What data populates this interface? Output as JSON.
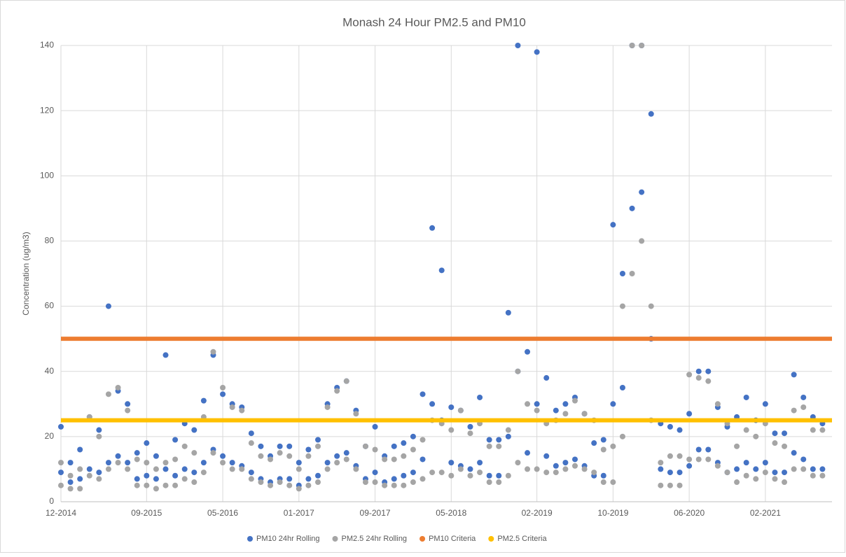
{
  "chart_data": {
    "type": "scatter",
    "title": "Monash 24 Hour PM2.5 and PM10",
    "y_label": "Concentration (ug/m3)",
    "x": [
      "12-2014",
      "01-2015",
      "02-2015",
      "03-2015",
      "04-2015",
      "05-2015",
      "06-2015",
      "07-2015",
      "08-2015",
      "09-2015",
      "10-2015",
      "11-2015",
      "12-2015",
      "01-2016",
      "02-2016",
      "03-2016",
      "04-2016",
      "05-2016",
      "06-2016",
      "07-2016",
      "08-2016",
      "09-2016",
      "10-2016",
      "11-2016",
      "12-2016",
      "01-2017",
      "02-2017",
      "03-2017",
      "04-2017",
      "05-2017",
      "06-2017",
      "07-2017",
      "08-2017",
      "09-2017",
      "10-2017",
      "11-2017",
      "12-2017",
      "01-2018",
      "02-2018",
      "03-2018",
      "04-2018",
      "05-2018",
      "06-2018",
      "07-2018",
      "08-2018",
      "09-2018",
      "10-2018",
      "11-2018",
      "12-2018",
      "01-2019",
      "02-2019",
      "03-2019",
      "04-2019",
      "05-2019",
      "06-2019",
      "07-2019",
      "08-2019",
      "09-2019",
      "10-2019",
      "11-2019",
      "12-2019",
      "01-2020",
      "02-2020",
      "03-2020",
      "04-2020",
      "05-2020",
      "06-2020",
      "07-2020",
      "08-2020",
      "09-2020",
      "10-2020",
      "11-2020",
      "12-2020",
      "01-2021",
      "02-2021",
      "03-2021",
      "04-2021",
      "05-2021",
      "06-2021",
      "07-2021",
      "08-2021"
    ],
    "xlim": [
      "12-2014",
      "09-2021"
    ],
    "xticks": [
      "12-2014",
      "09-2015",
      "05-2016",
      "01-2017",
      "09-2017",
      "05-2018",
      "02-2019",
      "10-2019",
      "06-2020",
      "02-2021"
    ],
    "ylim": [
      0,
      140
    ],
    "yticks": [
      0,
      20,
      40,
      60,
      80,
      100,
      120,
      140
    ],
    "grid": true,
    "series": [
      {
        "name": "PM10 24hr Rolling",
        "color": "#4472c4",
        "values": [
          [
            23,
            9
          ],
          [
            12,
            6
          ],
          [
            16,
            7
          ],
          [
            26,
            10
          ],
          [
            22,
            9
          ],
          [
            60,
            12
          ],
          [
            34,
            14
          ],
          [
            30,
            12
          ],
          [
            15,
            7
          ],
          [
            18,
            8
          ],
          [
            14,
            7
          ],
          [
            45,
            10
          ],
          [
            19,
            8
          ],
          [
            24,
            10
          ],
          [
            22,
            9
          ],
          [
            31,
            12
          ],
          [
            45,
            16
          ],
          [
            33,
            14
          ],
          [
            30,
            12
          ],
          [
            29,
            11
          ],
          [
            21,
            9
          ],
          [
            17,
            7
          ],
          [
            14,
            6
          ],
          [
            17,
            7
          ],
          [
            17,
            7
          ],
          [
            12,
            5
          ],
          [
            16,
            7
          ],
          [
            19,
            8
          ],
          [
            30,
            12
          ],
          [
            35,
            14
          ],
          [
            37,
            15
          ],
          [
            28,
            11
          ],
          [
            17,
            7
          ],
          [
            23,
            9
          ],
          [
            14,
            6
          ],
          [
            17,
            7
          ],
          [
            18,
            8
          ],
          [
            20,
            9
          ],
          [
            33,
            13
          ],
          [
            84,
            30
          ],
          [
            71,
            25
          ],
          [
            29,
            12
          ],
          [
            28,
            11
          ],
          [
            23,
            10
          ],
          [
            32,
            12
          ],
          [
            19,
            8
          ],
          [
            19,
            8
          ],
          [
            58,
            20
          ],
          [
            140,
            40
          ],
          [
            46,
            15
          ],
          [
            138,
            30
          ],
          [
            38,
            14
          ],
          [
            28,
            11
          ],
          [
            30,
            12
          ],
          [
            32,
            13
          ],
          [
            27,
            11
          ],
          [
            18,
            8
          ],
          [
            19,
            8
          ],
          [
            85,
            30
          ],
          [
            70,
            35
          ],
          [
            140,
            90
          ],
          [
            140,
            95
          ],
          [
            119,
            50
          ],
          [
            24,
            10
          ],
          [
            23,
            9
          ],
          [
            22,
            9
          ],
          [
            27,
            11
          ],
          [
            40,
            16
          ],
          [
            40,
            16
          ],
          [
            29,
            12
          ],
          [
            23,
            9
          ],
          [
            26,
            10
          ],
          [
            32,
            12
          ],
          [
            25,
            10
          ],
          [
            30,
            12
          ],
          [
            21,
            9
          ],
          [
            21,
            9
          ],
          [
            39,
            15
          ],
          [
            32,
            13
          ],
          [
            26,
            10
          ],
          [
            24,
            10
          ]
        ]
      },
      {
        "name": "PM2.5 24hr Rolling",
        "color": "#a5a5a5",
        "values": [
          [
            12,
            5
          ],
          [
            8,
            4
          ],
          [
            10,
            4
          ],
          [
            26,
            8
          ],
          [
            20,
            7
          ],
          [
            33,
            10
          ],
          [
            35,
            12
          ],
          [
            28,
            10
          ],
          [
            13,
            5
          ],
          [
            12,
            5
          ],
          [
            10,
            4
          ],
          [
            12,
            5
          ],
          [
            13,
            5
          ],
          [
            17,
            7
          ],
          [
            15,
            6
          ],
          [
            26,
            9
          ],
          [
            46,
            15
          ],
          [
            35,
            12
          ],
          [
            29,
            10
          ],
          [
            28,
            10
          ],
          [
            18,
            7
          ],
          [
            14,
            6
          ],
          [
            13,
            5
          ],
          [
            15,
            6
          ],
          [
            14,
            5
          ],
          [
            10,
            4
          ],
          [
            14,
            5
          ],
          [
            17,
            6
          ],
          [
            29,
            10
          ],
          [
            34,
            12
          ],
          [
            37,
            13
          ],
          [
            27,
            10
          ],
          [
            17,
            6
          ],
          [
            16,
            6
          ],
          [
            13,
            5
          ],
          [
            13,
            5
          ],
          [
            14,
            5
          ],
          [
            16,
            6
          ],
          [
            19,
            7
          ],
          [
            25,
            9
          ],
          [
            24,
            9
          ],
          [
            22,
            8
          ],
          [
            28,
            10
          ],
          [
            21,
            8
          ],
          [
            24,
            9
          ],
          [
            17,
            6
          ],
          [
            17,
            6
          ],
          [
            22,
            8
          ],
          [
            40,
            12
          ],
          [
            30,
            10
          ],
          [
            28,
            10
          ],
          [
            24,
            9
          ],
          [
            25,
            9
          ],
          [
            27,
            10
          ],
          [
            31,
            11
          ],
          [
            27,
            10
          ],
          [
            25,
            9
          ],
          [
            16,
            6
          ],
          [
            17,
            6
          ],
          [
            60,
            20
          ],
          [
            140,
            70
          ],
          [
            140,
            80
          ],
          [
            60,
            25
          ],
          [
            12,
            5
          ],
          [
            14,
            5
          ],
          [
            14,
            5
          ],
          [
            39,
            13
          ],
          [
            38,
            13
          ],
          [
            37,
            13
          ],
          [
            30,
            11
          ],
          [
            24,
            9
          ],
          [
            17,
            6
          ],
          [
            22,
            8
          ],
          [
            20,
            7
          ],
          [
            24,
            9
          ],
          [
            18,
            7
          ],
          [
            17,
            6
          ],
          [
            28,
            10
          ],
          [
            29,
            10
          ],
          [
            22,
            8
          ],
          [
            22,
            8
          ]
        ]
      }
    ],
    "reference_lines": [
      {
        "name": "PM10 Criteria",
        "color": "#ed7d31",
        "value": 50
      },
      {
        "name": "PM2.5 Criteria",
        "color": "#ffc000",
        "value": 25
      }
    ]
  }
}
